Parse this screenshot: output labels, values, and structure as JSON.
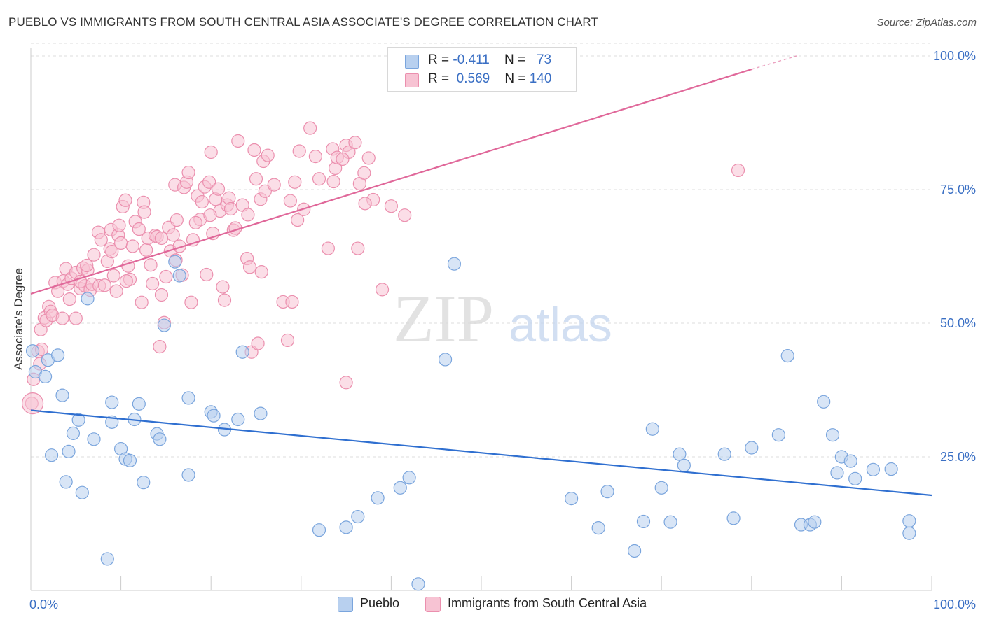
{
  "title": "PUEBLO VS IMMIGRANTS FROM SOUTH CENTRAL ASIA ASSOCIATE'S DEGREE CORRELATION CHART",
  "source": "Source: ZipAtlas.com",
  "watermark": {
    "zip": "ZIP",
    "atlas": "atlas"
  },
  "legend_top": [
    {
      "r_label": "R =",
      "r_value": "-0.411",
      "n_label": "N =",
      "n_value": "73"
    },
    {
      "r_label": "R =",
      "r_value": "0.569",
      "n_label": "N =",
      "n_value": "140"
    }
  ],
  "legend_bottom": [
    {
      "label": "Pueblo"
    },
    {
      "label": "Immigrants from South Central Asia"
    }
  ],
  "colors": {
    "blue_fill": "#b8d0ef",
    "blue_stroke": "#7aa5dd",
    "blue_line": "#2f6fd0",
    "pink_fill": "#f7c3d3",
    "pink_stroke": "#eb8fae",
    "pink_line": "#e0689a",
    "tick_label": "#3a6fc4",
    "grid": "#dddddd"
  },
  "chart_data": {
    "type": "scatter",
    "title": "PUEBLO VS IMMIGRANTS FROM SOUTH CENTRAL ASIA ASSOCIATE'S DEGREE CORRELATION CHART",
    "xlabel": "",
    "ylabel": "Associate's Degree",
    "xlim": [
      0,
      100
    ],
    "ylim": [
      0,
      100
    ],
    "x_tick_labels": [
      "0.0%",
      "100.0%"
    ],
    "y_tick_labels": [
      "25.0%",
      "50.0%",
      "75.0%",
      "100.0%"
    ],
    "y_ticks": [
      25,
      50,
      75,
      100
    ],
    "grid": "horizontal dashed",
    "legend_placement": "bottom",
    "series": [
      {
        "name": "Pueblo",
        "color": "#b8d0ef",
        "r": -0.411,
        "n": 73,
        "trend": {
          "x": [
            0,
            100
          ],
          "y": [
            33.7,
            17.8
          ],
          "style": "solid"
        },
        "points": [
          [
            0.2,
            44.8
          ],
          [
            0.5,
            40.9
          ],
          [
            1.9,
            43.1
          ],
          [
            3.0,
            44.0
          ],
          [
            1.6,
            40.0
          ],
          [
            3.5,
            36.5
          ],
          [
            2.3,
            25.3
          ],
          [
            4.2,
            26.0
          ],
          [
            5.3,
            31.9
          ],
          [
            4.7,
            29.4
          ],
          [
            7.0,
            28.3
          ],
          [
            9.0,
            35.2
          ],
          [
            9.0,
            31.5
          ],
          [
            3.9,
            20.3
          ],
          [
            5.7,
            18.3
          ],
          [
            6.3,
            54.6
          ],
          [
            10.0,
            26.5
          ],
          [
            10.5,
            24.6
          ],
          [
            11.0,
            24.3
          ],
          [
            11.5,
            32.0
          ],
          [
            12.0,
            34.9
          ],
          [
            12.5,
            20.2
          ],
          [
            14.0,
            29.3
          ],
          [
            14.3,
            28.3
          ],
          [
            14.8,
            49.6
          ],
          [
            16.0,
            61.5
          ],
          [
            16.5,
            58.9
          ],
          [
            17.5,
            36.0
          ],
          [
            17.5,
            21.6
          ],
          [
            20.0,
            33.4
          ],
          [
            20.3,
            32.7
          ],
          [
            21.5,
            30.1
          ],
          [
            23.0,
            32.0
          ],
          [
            23.5,
            44.6
          ],
          [
            25.5,
            33.1
          ],
          [
            8.5,
            5.9
          ],
          [
            32.0,
            11.3
          ],
          [
            35.0,
            11.8
          ],
          [
            36.3,
            13.8
          ],
          [
            38.5,
            17.3
          ],
          [
            41.0,
            19.2
          ],
          [
            42.0,
            21.1
          ],
          [
            43.0,
            1.2
          ],
          [
            46.0,
            43.2
          ],
          [
            47.0,
            61.1
          ],
          [
            60.0,
            17.2
          ],
          [
            63.0,
            11.7
          ],
          [
            64.0,
            18.5
          ],
          [
            67.0,
            7.4
          ],
          [
            68.0,
            12.9
          ],
          [
            69.0,
            30.2
          ],
          [
            70.0,
            19.2
          ],
          [
            71.0,
            12.8
          ],
          [
            72.0,
            25.5
          ],
          [
            72.5,
            23.4
          ],
          [
            77.0,
            25.5
          ],
          [
            78.0,
            13.5
          ],
          [
            80.0,
            26.7
          ],
          [
            83.0,
            29.1
          ],
          [
            84.0,
            43.9
          ],
          [
            85.5,
            12.3
          ],
          [
            86.5,
            12.3
          ],
          [
            87.0,
            12.8
          ],
          [
            88.0,
            35.3
          ],
          [
            89.0,
            29.1
          ],
          [
            89.5,
            22.0
          ],
          [
            90.0,
            25.0
          ],
          [
            91.0,
            24.2
          ],
          [
            91.5,
            20.9
          ],
          [
            93.5,
            22.6
          ],
          [
            95.5,
            22.7
          ],
          [
            97.5,
            13.0
          ],
          [
            97.5,
            10.7
          ]
        ]
      },
      {
        "name": "Immigrants from South Central Asia",
        "color": "#f7c3d3",
        "r": 0.569,
        "n": 140,
        "trend": {
          "x": [
            0,
            80
          ],
          "y": [
            55.5,
            97.5
          ],
          "dash_x": [
            80,
            85
          ],
          "dash_y": [
            97.5,
            100
          ],
          "style": "solid then dashed"
        },
        "points": [
          [
            0.1,
            35.0
          ],
          [
            0.3,
            39.5
          ],
          [
            0.8,
            44.7
          ],
          [
            1.0,
            42.4
          ],
          [
            1.1,
            48.8
          ],
          [
            1.2,
            45.1
          ],
          [
            1.5,
            51.0
          ],
          [
            1.7,
            50.5
          ],
          [
            2.0,
            53.1
          ],
          [
            2.2,
            52.2
          ],
          [
            2.4,
            51.5
          ],
          [
            2.7,
            57.6
          ],
          [
            3.0,
            56.0
          ],
          [
            3.5,
            50.9
          ],
          [
            3.6,
            57.9
          ],
          [
            3.9,
            60.2
          ],
          [
            4.1,
            57.3
          ],
          [
            4.3,
            54.5
          ],
          [
            4.5,
            58.4
          ],
          [
            5.0,
            50.9
          ],
          [
            5.0,
            59.5
          ],
          [
            5.5,
            56.5
          ],
          [
            5.8,
            60.3
          ],
          [
            6.0,
            57.0
          ],
          [
            6.3,
            59.9
          ],
          [
            6.6,
            56.2
          ],
          [
            6.8,
            57.3
          ],
          [
            7.0,
            62.8
          ],
          [
            7.5,
            67.0
          ],
          [
            7.6,
            57.0
          ],
          [
            7.8,
            65.6
          ],
          [
            8.2,
            57.1
          ],
          [
            8.5,
            61.6
          ],
          [
            8.8,
            63.9
          ],
          [
            8.9,
            67.5
          ],
          [
            9.0,
            63.4
          ],
          [
            9.5,
            56.0
          ],
          [
            9.7,
            66.5
          ],
          [
            9.8,
            68.3
          ],
          [
            10.0,
            65.0
          ],
          [
            10.2,
            71.8
          ],
          [
            10.5,
            73.0
          ],
          [
            10.8,
            60.7
          ],
          [
            11.0,
            58.2
          ],
          [
            11.3,
            64.4
          ],
          [
            11.6,
            69.0
          ],
          [
            12.0,
            67.6
          ],
          [
            12.3,
            53.9
          ],
          [
            12.5,
            72.6
          ],
          [
            12.8,
            63.7
          ],
          [
            13.0,
            65.9
          ],
          [
            13.3,
            60.9
          ],
          [
            13.5,
            57.4
          ],
          [
            13.8,
            66.4
          ],
          [
            14.0,
            66.2
          ],
          [
            14.3,
            45.6
          ],
          [
            14.5,
            55.3
          ],
          [
            14.8,
            50.1
          ],
          [
            15.0,
            58.7
          ],
          [
            15.3,
            67.9
          ],
          [
            15.5,
            63.5
          ],
          [
            15.8,
            66.5
          ],
          [
            16.0,
            75.9
          ],
          [
            16.2,
            69.3
          ],
          [
            16.5,
            64.4
          ],
          [
            16.8,
            59.0
          ],
          [
            17.0,
            75.4
          ],
          [
            17.3,
            76.4
          ],
          [
            17.5,
            78.2
          ],
          [
            17.8,
            53.9
          ],
          [
            18.0,
            65.6
          ],
          [
            18.5,
            73.8
          ],
          [
            18.8,
            69.4
          ],
          [
            19.0,
            72.7
          ],
          [
            19.3,
            75.5
          ],
          [
            19.5,
            59.1
          ],
          [
            19.8,
            76.4
          ],
          [
            20.0,
            82.0
          ],
          [
            20.2,
            66.8
          ],
          [
            20.5,
            73.2
          ],
          [
            20.8,
            75.1
          ],
          [
            21.0,
            71.0
          ],
          [
            21.3,
            56.8
          ],
          [
            21.5,
            54.3
          ],
          [
            21.8,
            72.1
          ],
          [
            22.0,
            73.4
          ],
          [
            22.2,
            71.4
          ],
          [
            22.5,
            67.4
          ],
          [
            23.0,
            84.1
          ],
          [
            23.5,
            72.1
          ],
          [
            24.0,
            62.1
          ],
          [
            24.3,
            60.5
          ],
          [
            24.5,
            44.6
          ],
          [
            24.8,
            82.4
          ],
          [
            25.0,
            77.0
          ],
          [
            25.2,
            46.2
          ],
          [
            25.5,
            73.2
          ],
          [
            25.8,
            80.3
          ],
          [
            26.0,
            74.7
          ],
          [
            26.3,
            81.4
          ],
          [
            27.0,
            75.9
          ],
          [
            28.0,
            54.0
          ],
          [
            28.5,
            46.8
          ],
          [
            29.0,
            54.0
          ],
          [
            29.3,
            76.4
          ],
          [
            29.8,
            82.2
          ],
          [
            30.3,
            71.3
          ],
          [
            31.0,
            86.5
          ],
          [
            32.0,
            77.0
          ],
          [
            33.0,
            64.0
          ],
          [
            33.5,
            82.6
          ],
          [
            33.8,
            79.0
          ],
          [
            34.0,
            81.0
          ],
          [
            35.0,
            83.3
          ],
          [
            35.3,
            82.0
          ],
          [
            36.0,
            83.8
          ],
          [
            36.3,
            64.0
          ],
          [
            36.5,
            76.1
          ],
          [
            37.0,
            78.1
          ],
          [
            37.5,
            80.9
          ],
          [
            38.0,
            73.1
          ],
          [
            39.0,
            56.3
          ],
          [
            40.0,
            71.9
          ],
          [
            41.5,
            70.2
          ],
          [
            35.0,
            38.9
          ],
          [
            78.5,
            78.6
          ],
          [
            5.5,
            57.8
          ],
          [
            6.2,
            60.8
          ],
          [
            9.2,
            58.9
          ],
          [
            10.6,
            57.9
          ],
          [
            12.6,
            70.8
          ],
          [
            14.5,
            65.9
          ],
          [
            16.1,
            61.8
          ],
          [
            18.3,
            68.8
          ],
          [
            19.9,
            70.2
          ],
          [
            22.7,
            67.8
          ],
          [
            24.1,
            70.3
          ],
          [
            28.8,
            72.9
          ],
          [
            29.6,
            69.3
          ],
          [
            31.6,
            81.2
          ],
          [
            33.6,
            76.5
          ],
          [
            34.6,
            80.7
          ],
          [
            37.1,
            72.4
          ],
          [
            25.6,
            59.6
          ]
        ]
      }
    ]
  }
}
